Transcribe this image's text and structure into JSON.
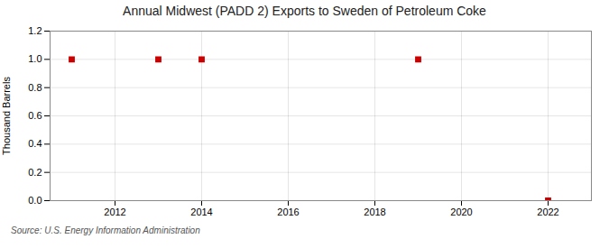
{
  "chart_data": {
    "type": "scatter",
    "title": "Annual Midwest (PADD 2) Exports to Sweden of Petroleum Coke",
    "ylabel": "Thousand Barrels",
    "source": "Source: U.S. Energy Information Administration",
    "x": [
      2011,
      2013,
      2014,
      2019,
      2022
    ],
    "values": [
      1.0,
      1.0,
      1.0,
      1.0,
      0.0
    ],
    "color": "#cc0000",
    "marker": "square",
    "xlim": [
      2010.5,
      2023.0
    ],
    "ylim": [
      0.0,
      1.2
    ],
    "xticks": [
      2012,
      2014,
      2016,
      2018,
      2020,
      2022
    ],
    "yticks": [
      {
        "value": 0.0,
        "label": "0.0"
      },
      {
        "value": 0.2,
        "label": "0.2"
      },
      {
        "value": 0.4,
        "label": "0.4"
      },
      {
        "value": 0.6,
        "label": "0.6"
      },
      {
        "value": 0.8,
        "label": "0.8"
      },
      {
        "value": 1.0,
        "label": "1.0"
      },
      {
        "value": 1.2,
        "label": "1.2"
      }
    ],
    "grid": true
  }
}
